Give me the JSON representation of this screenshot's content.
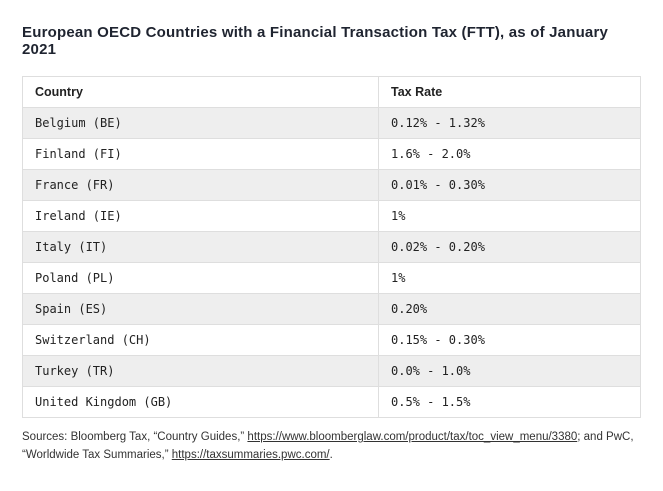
{
  "chart_data": {
    "type": "table",
    "title": "European OECD Countries with a Financial Transaction Tax (FTT), as of January 2021",
    "columns": [
      "Country",
      "Tax Rate"
    ],
    "rows": [
      [
        "Belgium (BE)",
        "0.12% - 1.32%"
      ],
      [
        "Finland (FI)",
        "1.6% - 2.0%"
      ],
      [
        "France (FR)",
        "0.01% - 0.30%"
      ],
      [
        "Ireland (IE)",
        "1%"
      ],
      [
        "Italy (IT)",
        "0.02% - 0.20%"
      ],
      [
        "Poland (PL)",
        "1%"
      ],
      [
        "Spain (ES)",
        "0.20%"
      ],
      [
        "Switzerland (CH)",
        "0.15% - 0.30%"
      ],
      [
        "Turkey (TR)",
        "0.0% - 1.0%"
      ],
      [
        "United Kingdom (GB)",
        "0.5% - 1.5%"
      ]
    ]
  },
  "sources": {
    "prefix": "Sources: Bloomberg Tax, “Country Guides,” ",
    "link1_text": "https://www.bloomberglaw.com/product/tax/toc_view_menu/3380",
    "mid": "; and PwC, “Worldwide Tax Summaries,” ",
    "link2_text": "https://taxsummaries.pwc.com/",
    "suffix": "."
  }
}
